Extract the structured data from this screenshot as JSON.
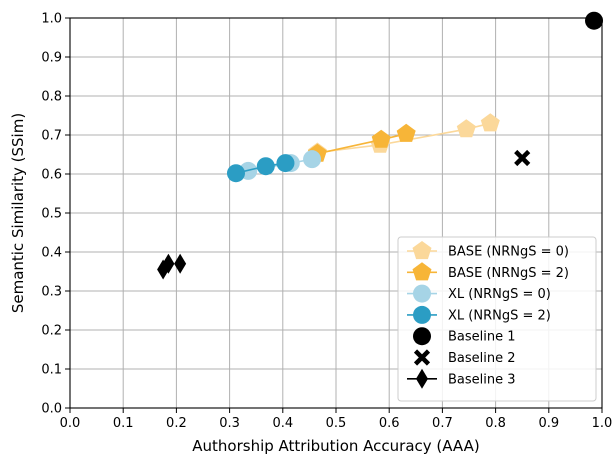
{
  "chart_data": {
    "type": "scatter",
    "xlabel": "Authorship Attribution Accuracy (AAA)",
    "ylabel": "Semantic Similarity (SSim)",
    "xlim": [
      0.0,
      1.0
    ],
    "ylim": [
      0.0,
      1.0
    ],
    "xticks": [
      "0.0",
      "0.1",
      "0.2",
      "0.3",
      "0.4",
      "0.5",
      "0.6",
      "0.7",
      "0.8",
      "0.9",
      "1.0"
    ],
    "yticks": [
      "0.0",
      "0.1",
      "0.2",
      "0.3",
      "0.4",
      "0.5",
      "0.6",
      "0.7",
      "0.8",
      "0.9",
      "1.0"
    ],
    "grid": true,
    "legend_position": "bottom-right",
    "series": [
      {
        "name": "BASE (NRNgS = 0)",
        "marker": "pentagon",
        "color": "#fbd89a",
        "connected": true,
        "points": [
          [
            0.465,
            0.655
          ],
          [
            0.583,
            0.675
          ],
          [
            0.745,
            0.715
          ],
          [
            0.79,
            0.73
          ]
        ]
      },
      {
        "name": "BASE (NRNgS = 2)",
        "marker": "pentagon",
        "color": "#f7b538",
        "connected": true,
        "points": [
          [
            0.465,
            0.652
          ],
          [
            0.585,
            0.688
          ],
          [
            0.632,
            0.703
          ]
        ]
      },
      {
        "name": "XL (NRNgS = 0)",
        "marker": "circle",
        "color": "#a6d4e6",
        "connected": true,
        "points": [
          [
            0.335,
            0.608
          ],
          [
            0.415,
            0.628
          ],
          [
            0.455,
            0.638
          ]
        ]
      },
      {
        "name": "XL (NRNgS = 2)",
        "marker": "circle",
        "color": "#2b9dc4",
        "connected": true,
        "points": [
          [
            0.312,
            0.602
          ],
          [
            0.368,
            0.62
          ],
          [
            0.405,
            0.628
          ]
        ]
      },
      {
        "name": "Baseline 1",
        "marker": "circle",
        "color": "#000000",
        "connected": false,
        "points": [
          [
            0.985,
            0.993
          ]
        ]
      },
      {
        "name": "Baseline 2",
        "marker": "x",
        "color": "#000000",
        "connected": false,
        "points": [
          [
            0.85,
            0.641
          ]
        ]
      },
      {
        "name": "Baseline 3",
        "marker": "diamond",
        "color": "#000000",
        "connected": false,
        "points": [
          [
            0.175,
            0.355
          ],
          [
            0.185,
            0.37
          ],
          [
            0.207,
            0.37
          ]
        ]
      }
    ]
  }
}
